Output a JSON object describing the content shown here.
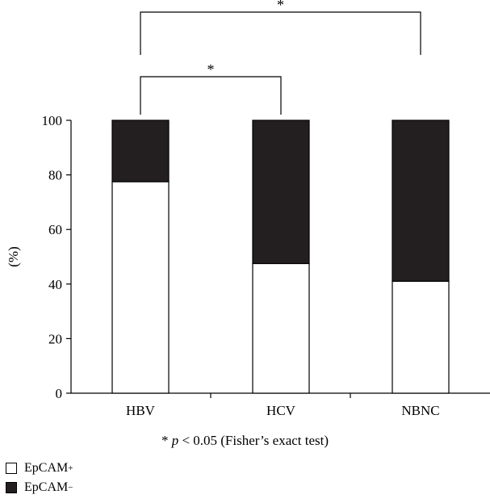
{
  "chart_data": {
    "type": "bar",
    "stacked": true,
    "categories": [
      "HBV",
      "HCV",
      "NBNC"
    ],
    "series": [
      {
        "name": "EpCAM",
        "sign": "+",
        "color": "#ffffff",
        "values": [
          77.5,
          47.5,
          41
        ]
      },
      {
        "name": "EpCAM",
        "sign": "−",
        "color": "#231f20",
        "values": [
          22.5,
          52.5,
          59
        ]
      }
    ],
    "ylabel": "(%)",
    "ylim": [
      0,
      100
    ],
    "yticks": [
      "0",
      "20",
      "40",
      "60",
      "80",
      "100"
    ],
    "grid": false,
    "legend_position": "bottom-left",
    "significance": [
      {
        "from": "HBV",
        "to": "HCV",
        "label": "*"
      },
      {
        "from": "HBV",
        "to": "NBNC",
        "label": "*"
      }
    ],
    "note": {
      "star": "*",
      "p": "p",
      "rest": " < 0.05 (Fisher’s exact test)"
    }
  }
}
